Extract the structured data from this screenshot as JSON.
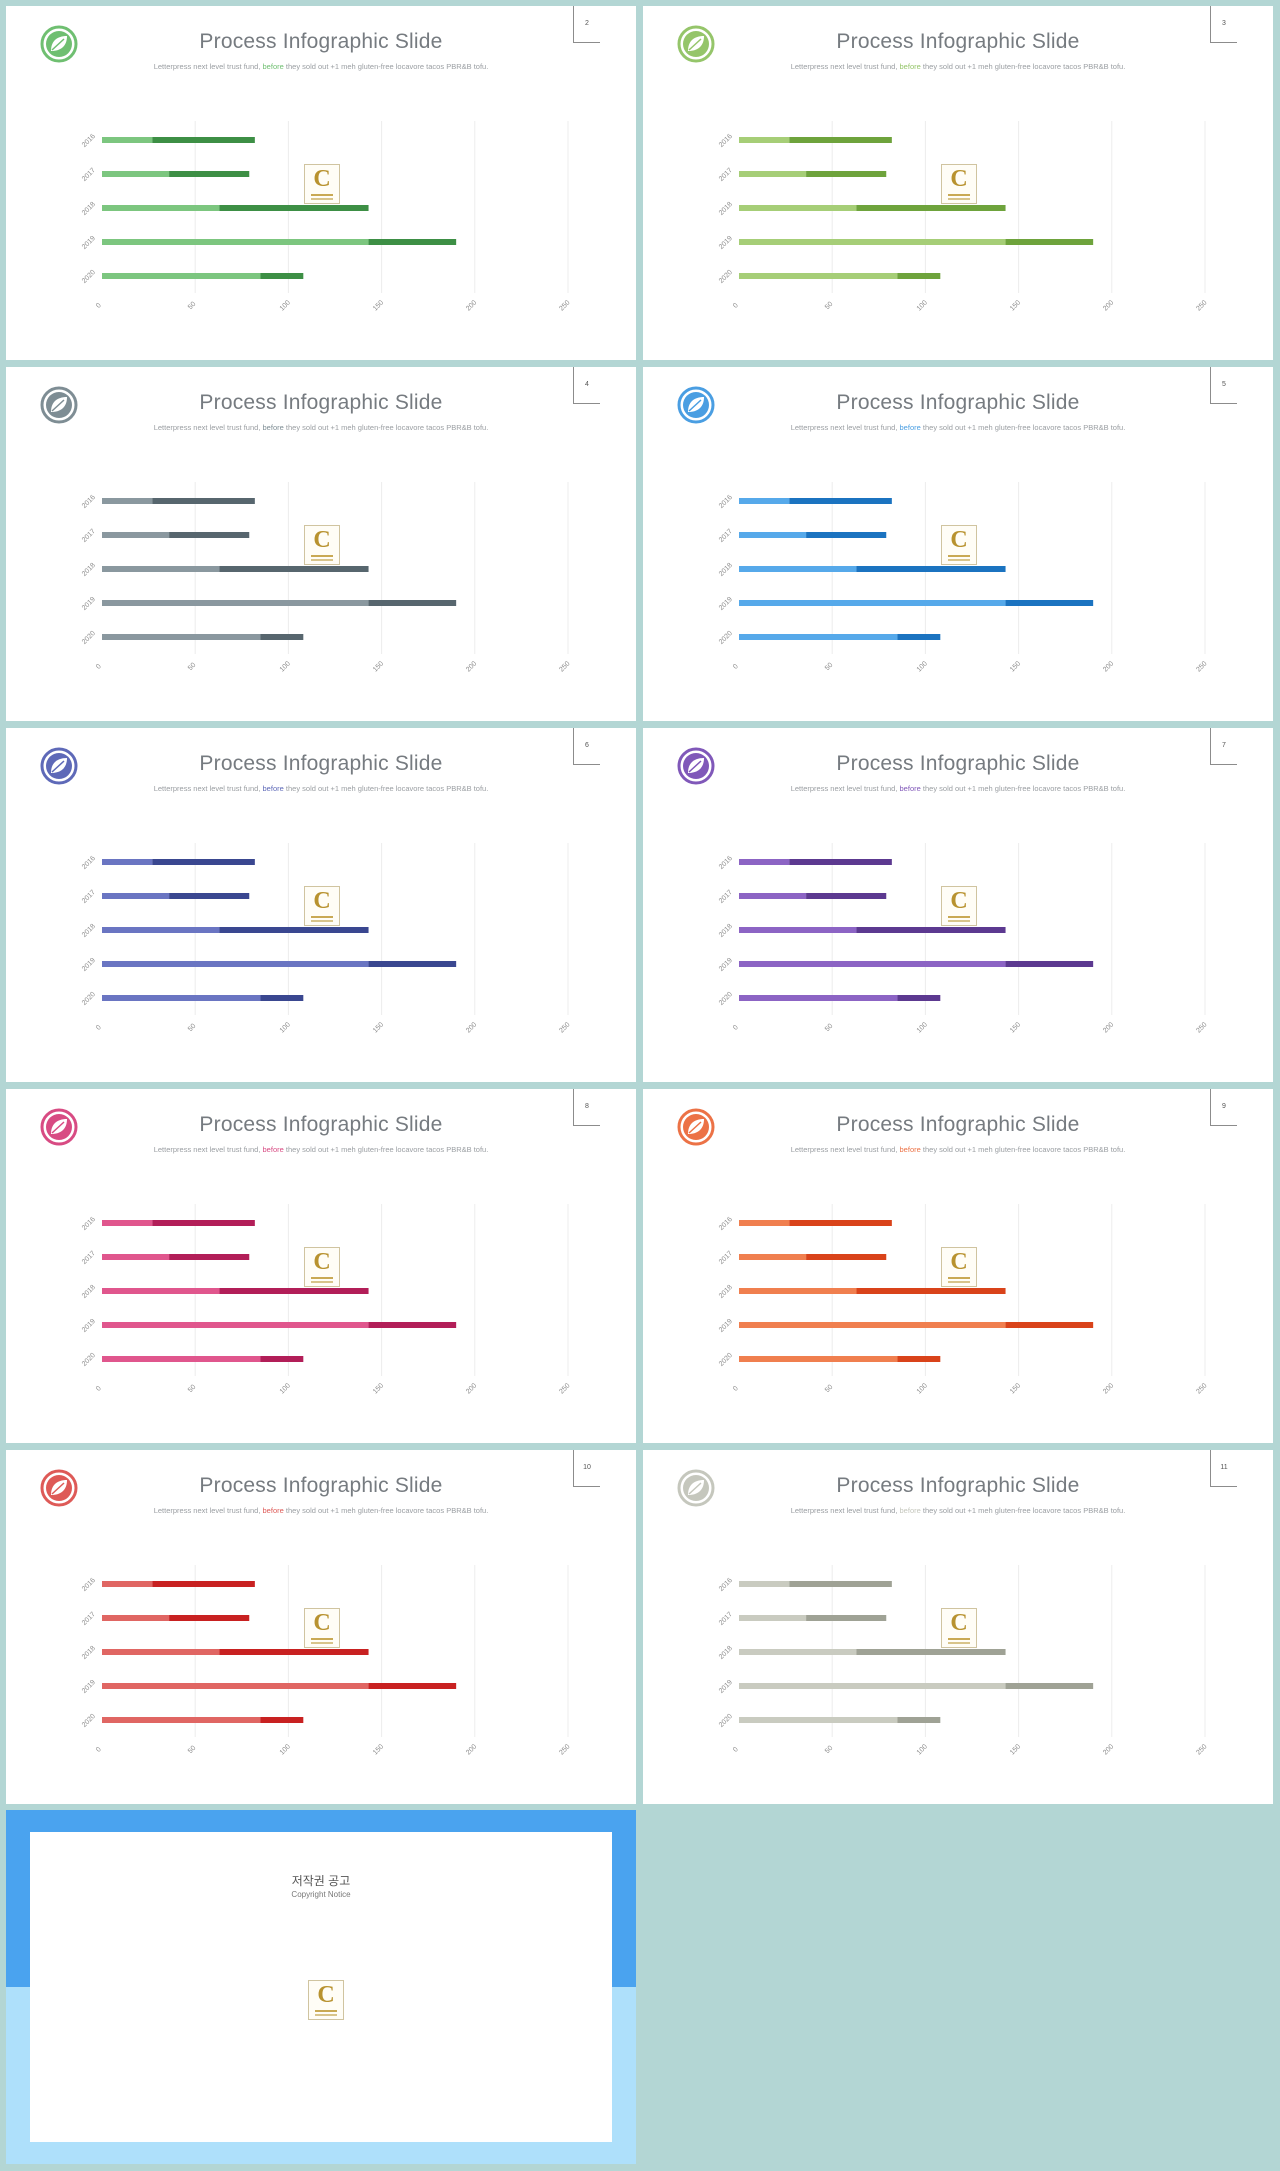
{
  "slides": [
    {
      "page": "2",
      "accent_light": "#7cc67f",
      "accent_dark": "#3d8f45",
      "leaf": "#6fbf71"
    },
    {
      "page": "3",
      "accent_light": "#a6ce77",
      "accent_dark": "#6ea33c",
      "leaf": "#95c56a"
    },
    {
      "page": "4",
      "accent_light": "#8a989f",
      "accent_dark": "#57666e",
      "leaf": "#7e8d94"
    },
    {
      "page": "5",
      "accent_light": "#56a9ea",
      "accent_dark": "#1b73c0",
      "leaf": "#4a9ee2"
    },
    {
      "page": "6",
      "accent_light": "#6a75c2",
      "accent_dark": "#3a4790",
      "leaf": "#5e69b8"
    },
    {
      "page": "7",
      "accent_light": "#8c64c4",
      "accent_dark": "#5c3990",
      "leaf": "#8058b9"
    },
    {
      "page": "8",
      "accent_light": "#e0568d",
      "accent_dark": "#b21e58",
      "leaf": "#d84b83"
    },
    {
      "page": "9",
      "accent_light": "#f07f4f",
      "accent_dark": "#d9431a",
      "leaf": "#ec7246"
    },
    {
      "page": "10",
      "accent_light": "#e06663",
      "accent_dark": "#c82121",
      "leaf": "#de5a57"
    },
    {
      "page": "11",
      "accent_light": "#c9cbc0",
      "accent_dark": "#9fa295",
      "leaf": "#c5c7bd"
    }
  ],
  "slide_text": {
    "title": "Process Infographic Slide",
    "subtitle_pre": "Letterpress next level trust fund,",
    "subtitle_accent": "before",
    "subtitle_post": "they sold out +1 meh gluten-free locavore tacos PBR&B tofu."
  },
  "logo_glyph": "C",
  "chart_data": {
    "type": "bar",
    "orientation": "horizontal",
    "stacked": true,
    "categories": [
      "2016",
      "2017",
      "2018",
      "2019",
      "2020"
    ],
    "series": [
      {
        "values": [
          27,
          36,
          63,
          143,
          85
        ]
      },
      {
        "values": [
          55,
          43,
          80,
          47,
          23
        ]
      }
    ],
    "x_ticks": [
      "0",
      "50",
      "100",
      "150",
      "200",
      "250"
    ],
    "xlim": [
      0,
      250
    ],
    "grid": true
  },
  "notice": {
    "title": "저작권 공고",
    "subtitle": "Copyright Notice",
    "paragraphs": [
      "",
      "",
      "",
      "",
      ""
    ]
  }
}
